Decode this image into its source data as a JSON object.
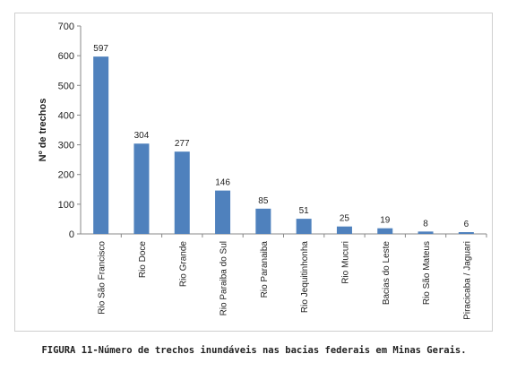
{
  "chart_data": {
    "type": "bar",
    "categories": [
      "Rio São Francisco",
      "Rio Doce",
      "Rio Grande",
      "Rio Paraiba do Sul",
      "Rio Paranaiba",
      "Rio Jequitinhonha",
      "Rio Mucuri",
      "Bacias do Leste",
      "Rio São Mateus",
      "Piracicaba / Jaguari"
    ],
    "values": [
      597,
      304,
      277,
      146,
      85,
      51,
      25,
      19,
      8,
      6
    ],
    "ylabel": "Nº de trechos",
    "ylim": [
      0,
      700
    ],
    "yticks": [
      0,
      100,
      200,
      300,
      400,
      500,
      600,
      700
    ],
    "grid": false,
    "colors": {
      "bar": "#4f81bd",
      "axis": "#888888",
      "text": "#222222"
    }
  },
  "caption": "FIGURA 11-Número de trechos inundáveis nas bacias federais em Minas Gerais."
}
